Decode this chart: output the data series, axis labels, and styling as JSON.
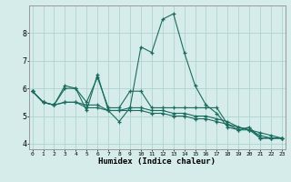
{
  "xlabel": "Humidex (Indice chaleur)",
  "bg_color": "#d5ecea",
  "grid_color": "#afd4d0",
  "line_color": "#1a6b5e",
  "x_ticks": [
    0,
    1,
    2,
    3,
    4,
    5,
    6,
    7,
    8,
    9,
    10,
    11,
    12,
    13,
    14,
    15,
    16,
    17,
    18,
    19,
    20,
    21,
    22,
    23
  ],
  "y_ticks": [
    4,
    5,
    6,
    7,
    8
  ],
  "ylim": [
    3.8,
    9.0
  ],
  "xlim": [
    -0.3,
    23.3
  ],
  "line1": [
    5.9,
    5.5,
    5.4,
    6.0,
    6.0,
    5.2,
    6.5,
    5.2,
    4.8,
    5.3,
    7.5,
    7.3,
    8.5,
    8.7,
    7.3,
    6.1,
    5.4,
    5.1,
    4.6,
    4.5,
    4.6,
    4.2,
    4.2,
    4.2
  ],
  "line2": [
    5.9,
    5.5,
    5.4,
    6.1,
    6.0,
    5.5,
    6.4,
    5.3,
    5.3,
    5.9,
    5.9,
    5.3,
    5.3,
    5.3,
    5.3,
    5.3,
    5.3,
    5.3,
    4.7,
    4.5,
    4.5,
    4.2,
    4.2,
    4.2
  ],
  "line3": [
    5.9,
    5.5,
    5.4,
    5.5,
    5.5,
    5.4,
    5.4,
    5.2,
    5.2,
    5.2,
    5.2,
    5.1,
    5.1,
    5.0,
    5.0,
    4.9,
    4.9,
    4.8,
    4.7,
    4.6,
    4.5,
    4.4,
    4.3,
    4.2
  ],
  "line4": [
    5.9,
    5.5,
    5.4,
    5.5,
    5.5,
    5.3,
    5.3,
    5.2,
    5.2,
    5.3,
    5.3,
    5.2,
    5.2,
    5.1,
    5.1,
    5.0,
    5.0,
    4.9,
    4.8,
    4.6,
    4.5,
    4.3,
    4.2,
    4.2
  ]
}
